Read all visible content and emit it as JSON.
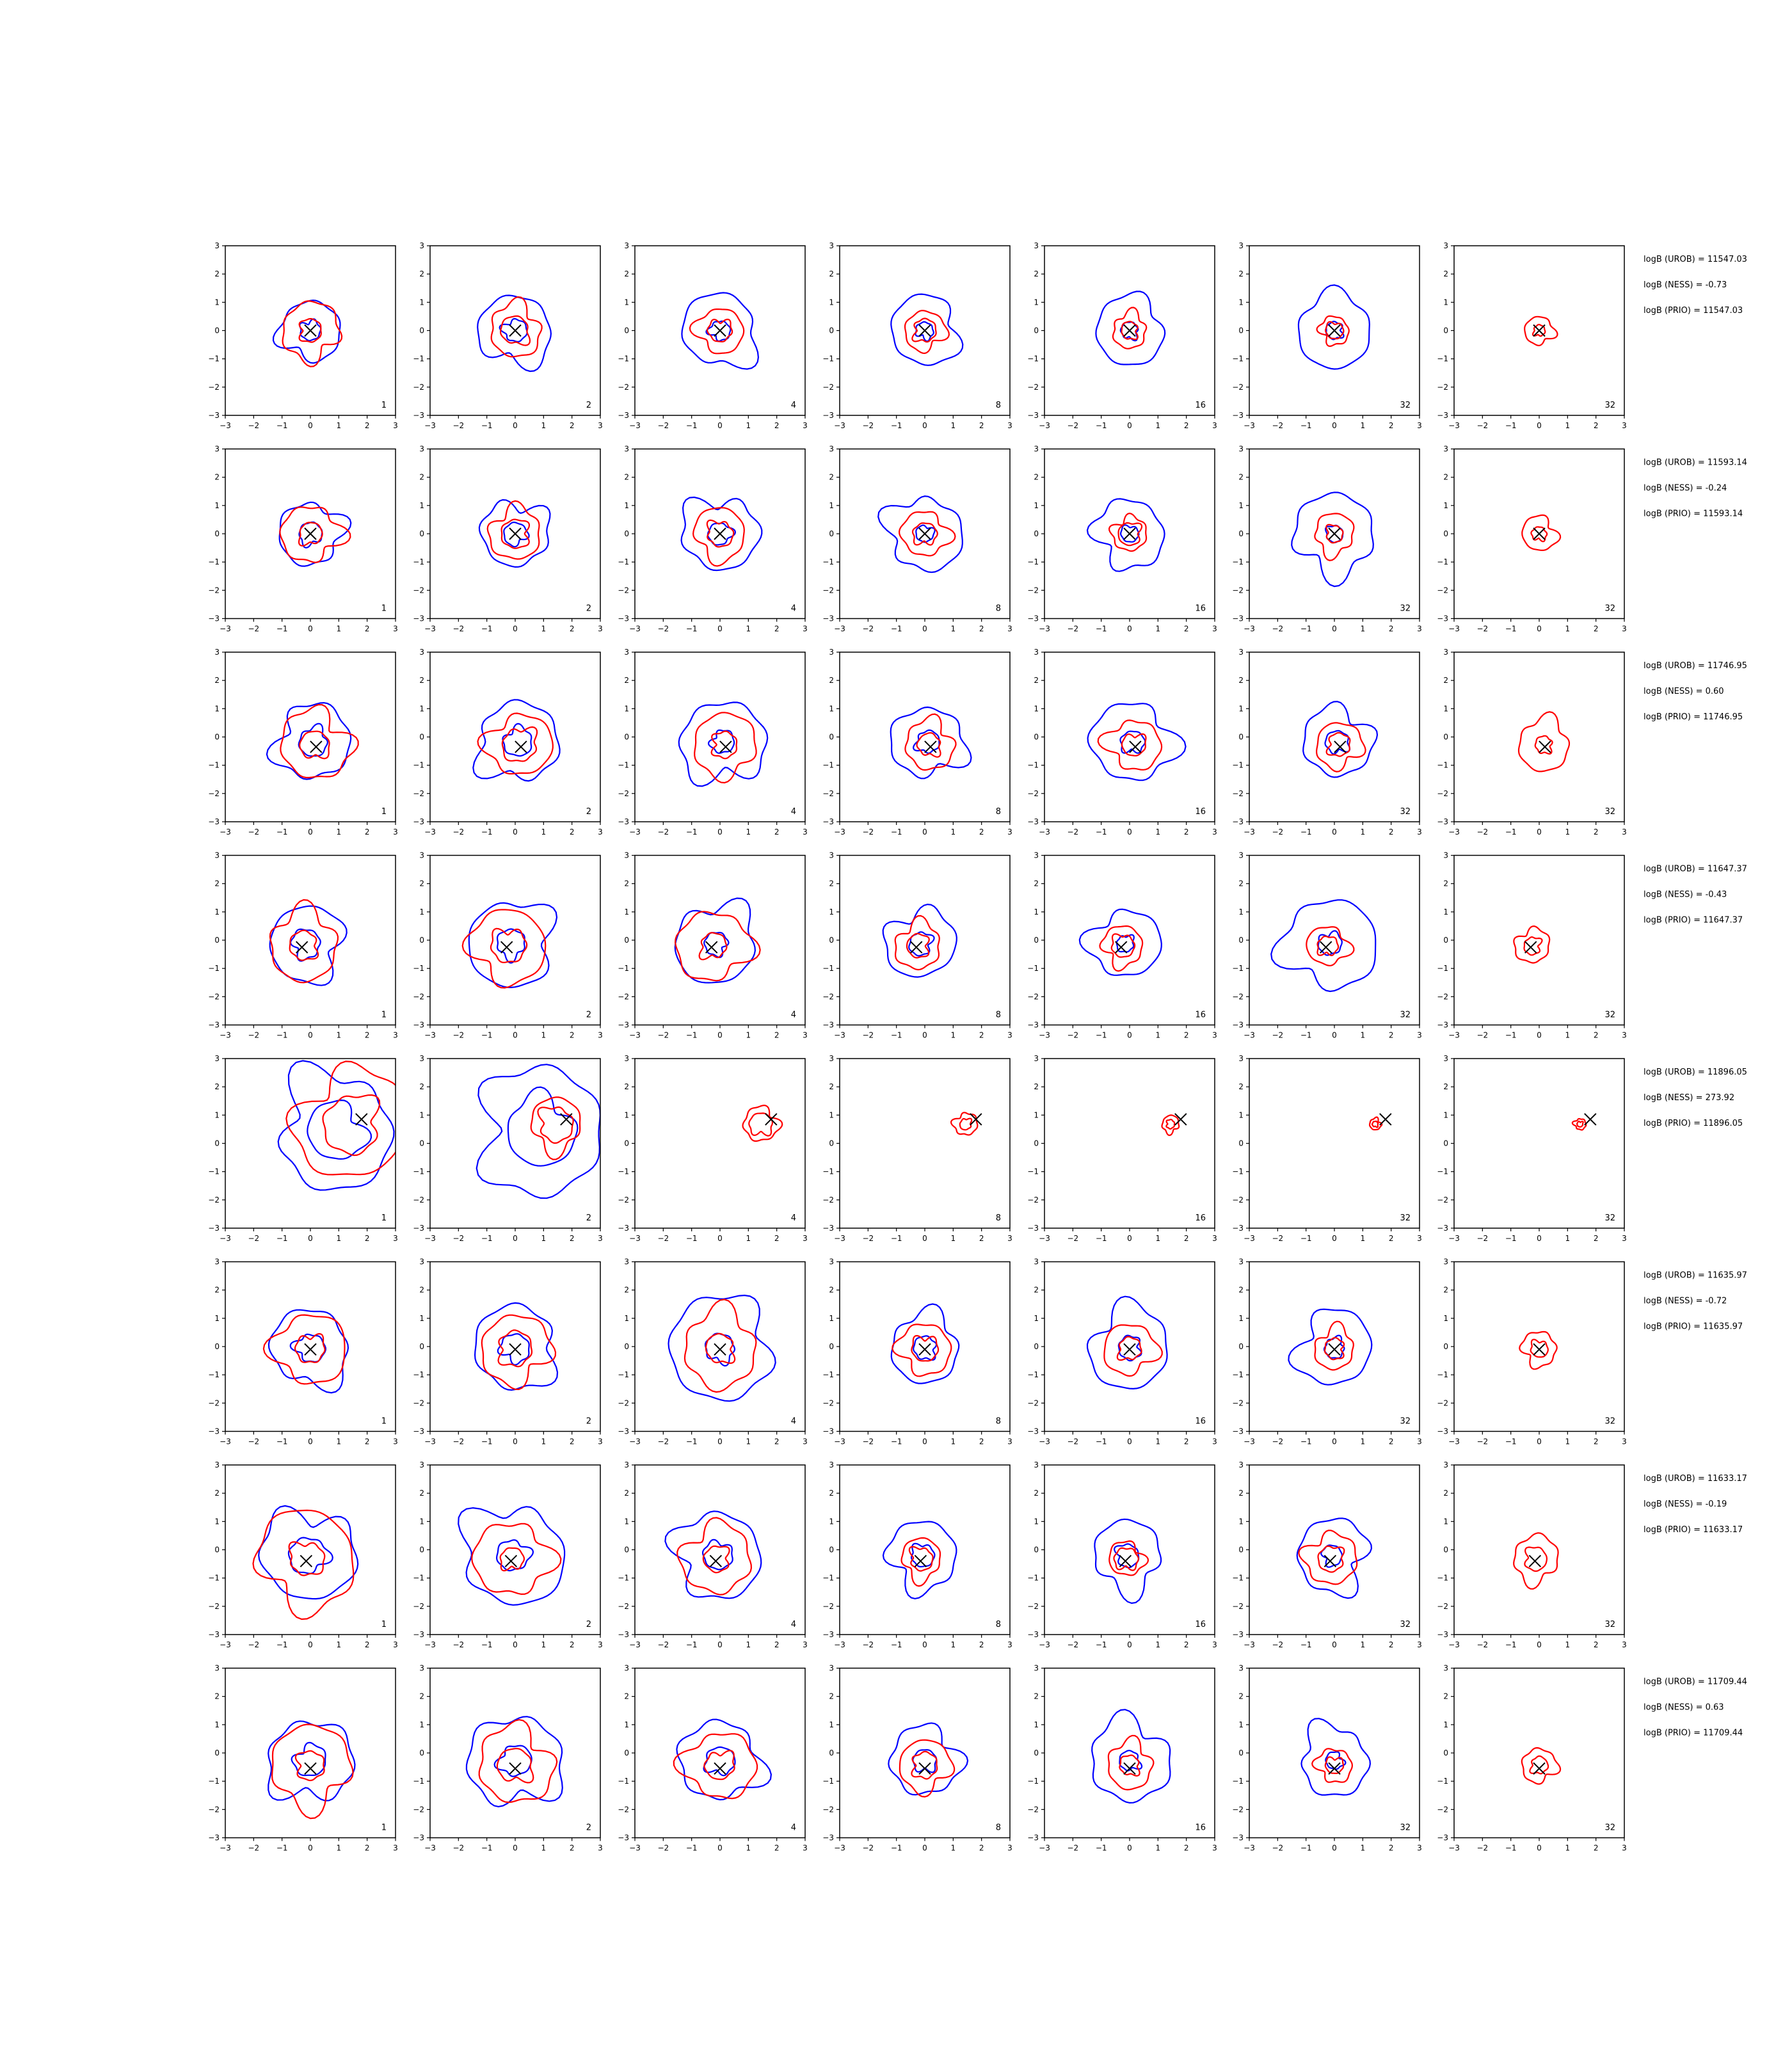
{
  "colors": {
    "prior": "#0000ff",
    "posterior": "#ff0000",
    "truth": "#000000",
    "frame": "#000000"
  },
  "chart_data": {
    "type": "contour-grid",
    "xlim": [
      -3,
      3
    ],
    "ylim": [
      -3,
      3
    ],
    "tick_labels": [
      "−3",
      "−2",
      "−1",
      "0",
      "1",
      "2",
      "3"
    ],
    "column_labels": [
      "1",
      "2",
      "4",
      "8",
      "16",
      "32",
      "32"
    ],
    "rows": [
      {
        "truth": [
          0.0,
          0.0
        ],
        "logB": [
          "logB (UROB) = 11547.03",
          "logB (NESS) = -0.73",
          "logB (PRIO) = 11547.03"
        ],
        "panels": [
          {
            "blue": [
              0.35,
              1.05
            ],
            "red": [
              0.4,
              1.0
            ]
          },
          {
            "blue": [
              0.4,
              1.25
            ],
            "red": [
              0.5,
              0.9
            ]
          },
          {
            "blue": [
              0.35,
              1.3
            ],
            "red": [
              0.4,
              0.8
            ]
          },
          {
            "blue": [
              0.3,
              1.2
            ],
            "red": [
              0.4,
              0.7
            ]
          },
          {
            "blue": [
              0.3,
              1.2
            ],
            "red": [
              0.3,
              0.6
            ]
          },
          {
            "blue": [
              0.3,
              1.3
            ],
            "red": [
              0.3,
              0.5
            ]
          },
          {
            "blue": [],
            "red": [
              0.2,
              0.5
            ]
          }
        ]
      },
      {
        "truth": [
          0.0,
          0.0
        ],
        "logB": [
          "logB (UROB) = 11593.14",
          "logB (NESS) = -0.24",
          "logB (PRIO) = 11593.14"
        ],
        "panels": [
          {
            "blue": [
              0.4,
              1.1
            ],
            "red": [
              0.4,
              1.0
            ]
          },
          {
            "blue": [
              0.4,
              1.15
            ],
            "red": [
              0.5,
              0.9
            ]
          },
          {
            "blue": [
              0.4,
              1.3
            ],
            "red": [
              0.45,
              0.9
            ]
          },
          {
            "blue": [
              0.3,
              1.3
            ],
            "red": [
              0.4,
              0.8
            ]
          },
          {
            "blue": [
              0.3,
              1.2
            ],
            "red": [
              0.4,
              0.6
            ]
          },
          {
            "blue": [
              0.3,
              1.4
            ],
            "red": [
              0.3,
              0.7
            ]
          },
          {
            "blue": [],
            "red": [
              0.25,
              0.6
            ]
          }
        ]
      },
      {
        "truth": [
          0.2,
          -0.35
        ],
        "logB": [
          "logB (UROB) = 11746.95",
          "logB (NESS) = 0.60",
          "logB (PRIO) = 11746.95"
        ],
        "panels": [
          {
            "blue": [
              0.5,
              1.3
            ],
            "red": [
              0.5,
              1.2
            ]
          },
          {
            "blue": [
              0.5,
              1.4
            ],
            "red": [
              0.6,
              1.1
            ]
          },
          {
            "blue": [
              0.4,
              1.45
            ],
            "red": [
              0.45,
              1.1
            ]
          },
          {
            "blue": [
              0.4,
              1.25
            ],
            "red": [
              0.4,
              0.85
            ]
          },
          {
            "blue": [
              0.4,
              1.4
            ],
            "red": [
              0.4,
              0.9
            ]
          },
          {
            "blue": [
              0.4,
              1.2
            ],
            "red": [
              0.4,
              0.8
            ]
          },
          {
            "blue": [],
            "red": [
              0.3,
              0.9
            ]
          }
        ]
      },
      {
        "truth": [
          -0.3,
          -0.25
        ],
        "logB": [
          "logB (UROB) = 11647.37",
          "logB (NESS) = -0.43",
          "logB (PRIO) = 11647.37"
        ],
        "panels": [
          {
            "blue": [
              0.5,
              1.3
            ],
            "red": [
              0.5,
              1.2
            ]
          },
          {
            "blue": [
              0.5,
              1.5
            ],
            "red": [
              0.6,
              1.3
            ]
          },
          {
            "blue": [
              0.4,
              1.4
            ],
            "red": [
              0.45,
              1.25
            ]
          },
          {
            "blue": [
              0.4,
              1.2
            ],
            "red": [
              0.4,
              0.8
            ]
          },
          {
            "blue": [
              0.3,
              1.2
            ],
            "red": [
              0.4,
              0.7
            ]
          },
          {
            "blue": [
              0.4,
              1.6
            ],
            "red": [
              0.35,
              0.7
            ]
          },
          {
            "blue": [],
            "red": [
              0.3,
              0.6
            ]
          }
        ]
      },
      {
        "truth": [
          1.8,
          0.85
        ],
        "logB": [
          "logB (UROB) = 11896.05",
          "logB (NESS) = 273.92",
          "logB (PRIO) = 11896.05"
        ],
        "panels": [
          {
            "blue": [
              1.0,
              2.0
            ],
            "red": [
              1.0,
              1.9
            ]
          },
          {
            "blue": [
              1.2,
              2.2
            ],
            "red": [
              0.6,
              0.9
            ]
          },
          {
            "blue": [],
            "red": [
              0.4,
              0.6
            ]
          },
          {
            "blue": [],
            "red": [
              0.2,
              0.4
            ]
          },
          {
            "blue": [],
            "red": [
              0.15,
              0.3
            ]
          },
          {
            "blue": [],
            "red": [
              0.1,
              0.2
            ]
          },
          {
            "blue": [],
            "red": [
              0.1,
              0.2
            ]
          }
        ]
      },
      {
        "truth": [
          0.0,
          -0.1
        ],
        "logB": [
          "logB (UROB) = 11635.97",
          "logB (NESS) = -0.72",
          "logB (PRIO) = 11635.97"
        ],
        "panels": [
          {
            "blue": [
              0.5,
              1.35
            ],
            "red": [
              0.5,
              1.25
            ]
          },
          {
            "blue": [
              0.5,
              1.45
            ],
            "red": [
              0.6,
              1.2
            ]
          },
          {
            "blue": [
              0.5,
              1.8
            ],
            "red": [
              0.5,
              1.3
            ]
          },
          {
            "blue": [
              0.4,
              1.2
            ],
            "red": [
              0.45,
              0.9
            ]
          },
          {
            "blue": [
              0.4,
              1.4
            ],
            "red": [
              0.4,
              0.9
            ]
          },
          {
            "blue": [
              0.35,
              1.3
            ],
            "red": [
              0.35,
              0.7
            ]
          },
          {
            "blue": [],
            "red": [
              0.3,
              0.6
            ]
          }
        ]
      },
      {
        "truth": [
          -0.15,
          -0.4
        ],
        "logB": [
          "logB (UROB) = 11633.17",
          "logB (NESS) = -0.19",
          "logB (PRIO) = 11633.17"
        ],
        "panels": [
          {
            "blue": [
              0.65,
              1.6
            ],
            "red": [
              0.6,
              1.7
            ]
          },
          {
            "blue": [
              0.55,
              1.75
            ],
            "red": [
              0.4,
              1.3
            ]
          },
          {
            "blue": [
              0.5,
              1.5
            ],
            "red": [
              0.45,
              1.2
            ]
          },
          {
            "blue": [
              0.4,
              1.2
            ],
            "red": [
              0.4,
              0.7
            ]
          },
          {
            "blue": [
              0.4,
              1.2
            ],
            "red": [
              0.4,
              0.6
            ]
          },
          {
            "blue": [
              0.35,
              1.25
            ],
            "red": [
              0.45,
              0.9
            ]
          },
          {
            "blue": [],
            "red": [
              0.4,
              0.8
            ]
          }
        ]
      },
      {
        "truth": [
          0.0,
          -0.55
        ],
        "logB": [
          "logB (UROB) = 11709.44",
          "logB (NESS) = 0.63",
          "logB (PRIO) = 11709.44"
        ],
        "panels": [
          {
            "blue": [
              0.55,
              1.45
            ],
            "red": [
              0.5,
              1.4
            ]
          },
          {
            "blue": [
              0.55,
              1.6
            ],
            "red": [
              0.6,
              1.3
            ]
          },
          {
            "blue": [
              0.5,
              1.4
            ],
            "red": [
              0.5,
              1.2
            ]
          },
          {
            "blue": [
              0.4,
              1.2
            ],
            "red": [
              0.45,
              0.9
            ]
          },
          {
            "blue": [
              0.35,
              1.4
            ],
            "red": [
              0.35,
              0.8
            ]
          },
          {
            "blue": [
              0.3,
              1.2
            ],
            "red": [
              0.3,
              0.6
            ]
          },
          {
            "blue": [],
            "red": [
              0.3,
              0.6
            ]
          }
        ]
      }
    ]
  }
}
